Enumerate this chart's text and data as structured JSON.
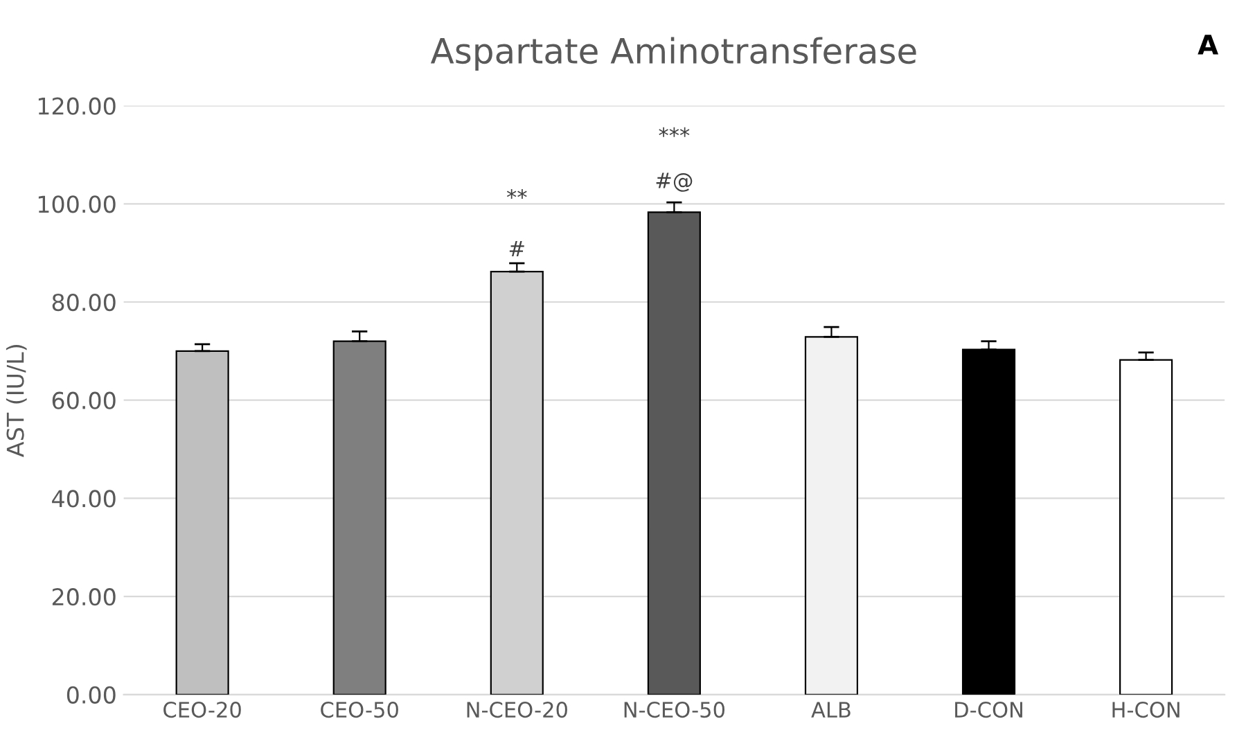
{
  "chart_data": {
    "type": "bar",
    "title": "Aspartate Aminotransferase",
    "ylabel": "AST (IU/L)",
    "categories": [
      "CEO-20",
      "CEO-50",
      "N-CEO-20",
      "N-CEO-50",
      "ALB",
      "D-CON",
      "H-CON"
    ],
    "values": [
      70.0,
      72.0,
      86.2,
      98.3,
      72.9,
      70.3,
      68.2
    ],
    "errors": [
      1.4,
      2.0,
      1.7,
      2.0,
      2.0,
      1.7,
      1.5
    ],
    "colors": [
      "#bfbfbf",
      "#7f7f7f",
      "#d0d0d0",
      "#595959",
      "#f2f2f2",
      "#000000",
      "#ffffff"
    ],
    "ylim": [
      0,
      120
    ],
    "yticks": [
      {
        "value": 0,
        "label": "0.00"
      },
      {
        "value": 20,
        "label": "20.00"
      },
      {
        "value": 40,
        "label": "40.00"
      },
      {
        "value": 60,
        "label": "60.00"
      },
      {
        "value": 80,
        "label": "80.00"
      },
      {
        "value": 100,
        "label": "100.00"
      },
      {
        "value": 120,
        "label": "120.00"
      }
    ],
    "grid": "y",
    "annotations": [
      "#",
      "**",
      "#@",
      "***",
      "A"
    ]
  }
}
